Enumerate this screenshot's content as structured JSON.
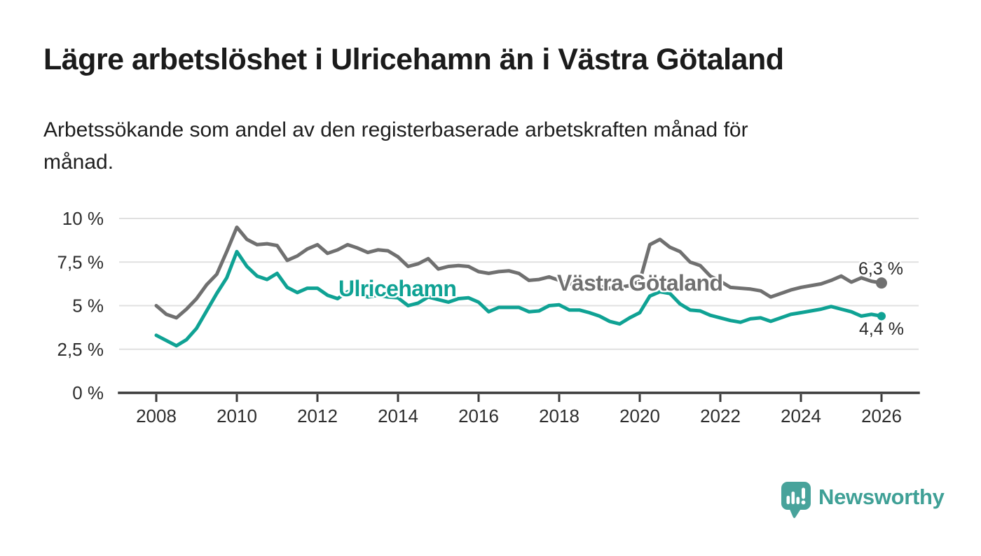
{
  "header": {
    "title": "Lägre arbetslöshet i Ulricehamn än i Västra Götaland",
    "subtitle_lines": [
      "Arbetssökande som andel av den registerbaserade arbetskraften månad för",
      "månad."
    ]
  },
  "branding": {
    "wordmark": "Newsworthy",
    "icon": "newsworthy-speech-bubble-bar-chart-icon",
    "brand_color": "#3fa096"
  },
  "colors": {
    "ulricehamn_teal": "#0fa294",
    "vastra_gotaland_gray": "#707070",
    "gridline": "#e0e0e0",
    "axis": "#3a3a3a",
    "tick_text": "#2d2d2d",
    "title_text": "#1b1b1b"
  },
  "chart_data": {
    "type": "line",
    "title": "Lägre arbetslöshet i Ulricehamn än i Västra Götaland",
    "subtitle": "Arbetssökande som andel av den registerbaserade arbetskraften månad för månad.",
    "ylabel": "",
    "xlabel": "",
    "ylim": [
      0,
      10.4
    ],
    "xlim": [
      2007.1,
      2027.0
    ],
    "grid": "horizontal",
    "legend_position": "inline-labels",
    "y_ticks": [
      {
        "value": 0,
        "label": "0 %"
      },
      {
        "value": 2.5,
        "label": "2,5 %"
      },
      {
        "value": 5,
        "label": "5 %"
      },
      {
        "value": 7.5,
        "label": "7,5 %"
      },
      {
        "value": 10,
        "label": "10 %"
      }
    ],
    "x_ticks": [
      {
        "value": 2008,
        "label": "2008"
      },
      {
        "value": 2010,
        "label": "2010"
      },
      {
        "value": 2012,
        "label": "2012"
      },
      {
        "value": 2014,
        "label": "2014"
      },
      {
        "value": 2016,
        "label": "2016"
      },
      {
        "value": 2018,
        "label": "2018"
      },
      {
        "value": 2020,
        "label": "2020"
      },
      {
        "value": 2022,
        "label": "2022"
      },
      {
        "value": 2024,
        "label": "2024"
      },
      {
        "value": 2026,
        "label": "2026"
      }
    ],
    "x": [
      2008.0,
      2008.25,
      2008.5,
      2008.75,
      2009.0,
      2009.25,
      2009.5,
      2009.75,
      2010.0,
      2010.25,
      2010.5,
      2010.75,
      2011.0,
      2011.25,
      2011.5,
      2011.75,
      2012.0,
      2012.25,
      2012.5,
      2012.75,
      2013.0,
      2013.25,
      2013.5,
      2013.75,
      2014.0,
      2014.25,
      2014.5,
      2014.75,
      2015.0,
      2015.25,
      2015.5,
      2015.75,
      2016.0,
      2016.25,
      2016.5,
      2016.75,
      2017.0,
      2017.25,
      2017.5,
      2017.75,
      2018.0,
      2018.25,
      2018.5,
      2018.75,
      2019.0,
      2019.25,
      2019.5,
      2019.75,
      2020.0,
      2020.25,
      2020.5,
      2020.75,
      2021.0,
      2021.25,
      2021.5,
      2021.75,
      2022.0,
      2022.25,
      2022.5,
      2022.75,
      2023.0,
      2023.25,
      2023.5,
      2023.75,
      2024.0,
      2024.25,
      2024.5,
      2024.75,
      2025.0,
      2025.25,
      2025.5,
      2025.75,
      2026.0
    ],
    "series": [
      {
        "name": "Västra Götaland",
        "color": "#707070",
        "end_label": "6,3 %",
        "end_value": 6.3,
        "values": [
          5.0,
          4.5,
          4.3,
          4.8,
          5.4,
          6.2,
          6.8,
          8.1,
          9.5,
          8.8,
          8.5,
          8.55,
          8.45,
          7.6,
          7.85,
          8.25,
          8.5,
          8.0,
          8.2,
          8.5,
          8.3,
          8.05,
          8.2,
          8.15,
          7.8,
          7.25,
          7.4,
          7.7,
          7.1,
          7.25,
          7.3,
          7.25,
          6.95,
          6.85,
          6.95,
          7.0,
          6.85,
          6.45,
          6.5,
          6.65,
          6.45,
          6.25,
          6.3,
          6.2,
          6.1,
          6.0,
          6.05,
          6.15,
          6.4,
          8.5,
          8.8,
          8.35,
          8.1,
          7.5,
          7.3,
          6.7,
          6.4,
          6.05,
          6.0,
          5.95,
          5.85,
          5.5,
          5.7,
          5.9,
          6.05,
          6.15,
          6.25,
          6.45,
          6.7,
          6.35,
          6.6,
          6.4,
          6.3
        ]
      },
      {
        "name": "Ulricehamn",
        "color": "#0fa294",
        "end_label": "4,4 %",
        "end_value": 4.4,
        "values": [
          3.3,
          3.0,
          2.7,
          3.05,
          3.7,
          4.7,
          5.7,
          6.6,
          8.1,
          7.25,
          6.7,
          6.5,
          6.85,
          6.05,
          5.75,
          6.0,
          6.0,
          5.6,
          5.4,
          5.8,
          5.75,
          5.5,
          5.6,
          5.5,
          5.45,
          5.0,
          5.15,
          5.5,
          5.35,
          5.2,
          5.4,
          5.45,
          5.2,
          4.65,
          4.9,
          4.9,
          4.9,
          4.65,
          4.7,
          5.0,
          5.05,
          4.75,
          4.75,
          4.6,
          4.4,
          4.1,
          3.95,
          4.3,
          4.6,
          5.55,
          5.8,
          5.7,
          5.1,
          4.75,
          4.7,
          4.45,
          4.3,
          4.15,
          4.05,
          4.25,
          4.3,
          4.1,
          4.3,
          4.5,
          4.6,
          4.7,
          4.8,
          4.95,
          4.8,
          4.65,
          4.4,
          4.5,
          4.4
        ]
      }
    ]
  }
}
